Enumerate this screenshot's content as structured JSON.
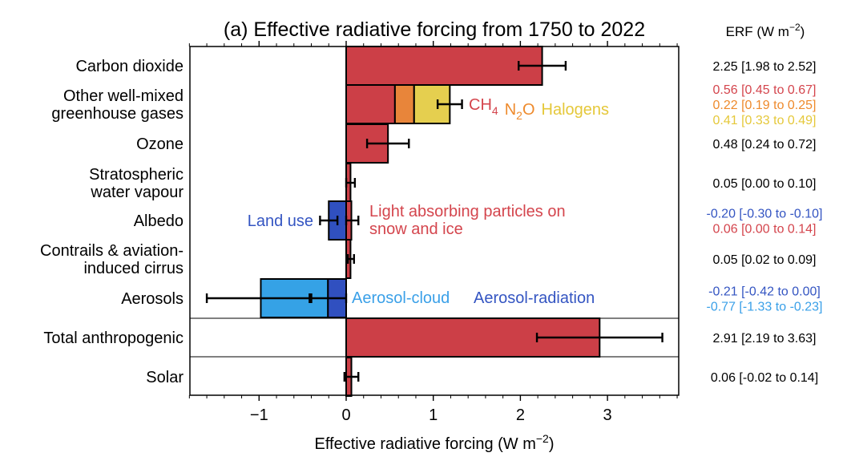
{
  "chart_data": {
    "type": "bar",
    "orientation": "horizontal",
    "title": "(a) Effective radiative forcing from 1750 to 2022",
    "xlabel": "Effective radiative forcing (W m⁻²)",
    "value_header": "ERF (W m⁻²)",
    "xlim": [
      -1.8,
      3.8
    ],
    "xticks": [
      -1,
      0,
      1,
      2,
      3
    ],
    "xtick_labels": [
      "−1",
      "0",
      "1",
      "2",
      "3"
    ],
    "grid": false,
    "colors": {
      "red": "#cc3f47",
      "orange": "#e8853a",
      "yellow": "#e5cf4f",
      "blue_dark": "#3050c0",
      "blue_light": "#35a2e6",
      "text_red": "#d4454d",
      "text_orange": "#ee8a2c",
      "text_yellow": "#e5c83a",
      "text_blue_dark": "#3455c2",
      "text_blue_light": "#3aa0e8"
    },
    "categories": [
      {
        "label_lines": [
          "Carbon dioxide"
        ],
        "segments": [
          {
            "name": "Carbon dioxide",
            "value": 2.25,
            "low": 1.98,
            "high": 2.52,
            "color": "red"
          }
        ],
        "error": {
          "value": 2.25,
          "low": 1.98,
          "high": 2.52
        },
        "value_texts": [
          {
            "text": "2.25 [1.98 to 2.52]",
            "color": "black"
          }
        ]
      },
      {
        "label_lines": [
          "Other well-mixed",
          "greenhouse gases"
        ],
        "segments": [
          {
            "name": "CH4",
            "value": 0.56,
            "low": 0.45,
            "high": 0.67,
            "color": "red"
          },
          {
            "name": "N2O",
            "value": 0.22,
            "low": 0.19,
            "high": 0.25,
            "color": "orange"
          },
          {
            "name": "Halogens",
            "value": 0.41,
            "low": 0.33,
            "high": 0.49,
            "color": "yellow"
          }
        ],
        "error": {
          "value": 1.19,
          "low": 1.05,
          "high": 1.33
        },
        "inline_labels": [
          {
            "base": "CH",
            "sub": "4",
            "color": "text_red"
          },
          {
            "base": "N",
            "sub": "2",
            "tail": "O",
            "color": "text_orange"
          },
          {
            "base": "Halogens",
            "color": "text_yellow"
          }
        ],
        "value_texts": [
          {
            "text": "0.56 [0.45 to 0.67]",
            "color": "text_red"
          },
          {
            "text": "0.22 [0.19 to 0.25]",
            "color": "text_orange"
          },
          {
            "text": "0.41 [0.33 to 0.49]",
            "color": "text_yellow"
          }
        ]
      },
      {
        "label_lines": [
          "Ozone"
        ],
        "segments": [
          {
            "name": "Ozone",
            "value": 0.48,
            "low": 0.24,
            "high": 0.72,
            "color": "red"
          }
        ],
        "error": {
          "value": 0.48,
          "low": 0.24,
          "high": 0.72
        },
        "value_texts": [
          {
            "text": "0.48 [0.24 to 0.72]",
            "color": "black"
          }
        ]
      },
      {
        "label_lines": [
          "Stratospheric",
          "water vapour"
        ],
        "segments": [
          {
            "name": "Stratospheric water vapour",
            "value": 0.05,
            "low": 0.0,
            "high": 0.1,
            "color": "red"
          }
        ],
        "error": {
          "value": 0.05,
          "low": 0.0,
          "high": 0.1
        },
        "value_texts": [
          {
            "text": "0.05 [0.00 to 0.10]",
            "color": "black"
          }
        ]
      },
      {
        "label_lines": [
          "Albedo"
        ],
        "segments": [
          {
            "name": "Land use",
            "value": -0.2,
            "low": -0.3,
            "high": -0.1,
            "color": "blue_dark"
          },
          {
            "name": "Light absorbing particles on snow and ice",
            "value": 0.06,
            "low": 0.0,
            "high": 0.14,
            "color": "red"
          }
        ],
        "errors": [
          {
            "value": -0.2,
            "low": -0.3,
            "high": -0.1
          },
          {
            "value": 0.06,
            "low": 0.0,
            "high": 0.14
          }
        ],
        "left_label": {
          "text": "Land use",
          "color": "text_blue_dark"
        },
        "right_label_lines": [
          "Light absorbing particles on",
          "snow and ice"
        ],
        "right_label_color": "text_red",
        "value_texts": [
          {
            "text": "-0.20 [-0.30 to -0.10]",
            "color": "text_blue_dark"
          },
          {
            "text": "0.06 [0.00 to 0.14]",
            "color": "text_red"
          }
        ]
      },
      {
        "label_lines": [
          "Contrails & aviation-",
          "induced cirrus"
        ],
        "segments": [
          {
            "name": "Contrails & aviation-induced cirrus",
            "value": 0.05,
            "low": 0.02,
            "high": 0.09,
            "color": "red"
          }
        ],
        "error": {
          "value": 0.05,
          "low": 0.02,
          "high": 0.09
        },
        "value_texts": [
          {
            "text": "0.05 [0.02 to 0.09]",
            "color": "black"
          }
        ]
      },
      {
        "label_lines": [
          "Aerosols"
        ],
        "segments": [
          {
            "name": "Aerosol-radiation",
            "value": -0.21,
            "low": -0.42,
            "high": 0.0,
            "color": "blue_dark"
          },
          {
            "name": "Aerosol-cloud",
            "value": -0.77,
            "low": -1.33,
            "high": -0.23,
            "color": "blue_light"
          }
        ],
        "errors": [
          {
            "value": -0.21,
            "low": -0.42,
            "high": 0.0
          },
          {
            "value": -0.98,
            "low": -1.6,
            "high": -0.4
          }
        ],
        "inline_labels": [
          {
            "base": "Aerosol-cloud",
            "color": "text_blue_light"
          },
          {
            "base": "Aerosol-radiation",
            "color": "text_blue_dark"
          }
        ],
        "value_texts": [
          {
            "text": "-0.21 [-0.42 to 0.00]",
            "color": "text_blue_dark"
          },
          {
            "text": "-0.77 [-1.33 to -0.23]",
            "color": "text_blue_light"
          }
        ]
      },
      {
        "label_lines": [
          "Total anthropogenic"
        ],
        "segments": [
          {
            "name": "Total anthropogenic",
            "value": 2.91,
            "low": 2.19,
            "high": 3.63,
            "color": "red"
          }
        ],
        "error": {
          "value": 2.91,
          "low": 2.19,
          "high": 3.63
        },
        "value_texts": [
          {
            "text": "2.91 [2.19 to 3.63]",
            "color": "black"
          }
        ]
      },
      {
        "label_lines": [
          "Solar"
        ],
        "segments": [
          {
            "name": "Solar",
            "value": 0.06,
            "low": -0.02,
            "high": 0.14,
            "color": "red"
          }
        ],
        "error": {
          "value": 0.06,
          "low": -0.02,
          "high": 0.14
        },
        "value_texts": [
          {
            "text": "0.06 [-0.02 to 0.14]",
            "color": "black"
          }
        ]
      }
    ]
  }
}
